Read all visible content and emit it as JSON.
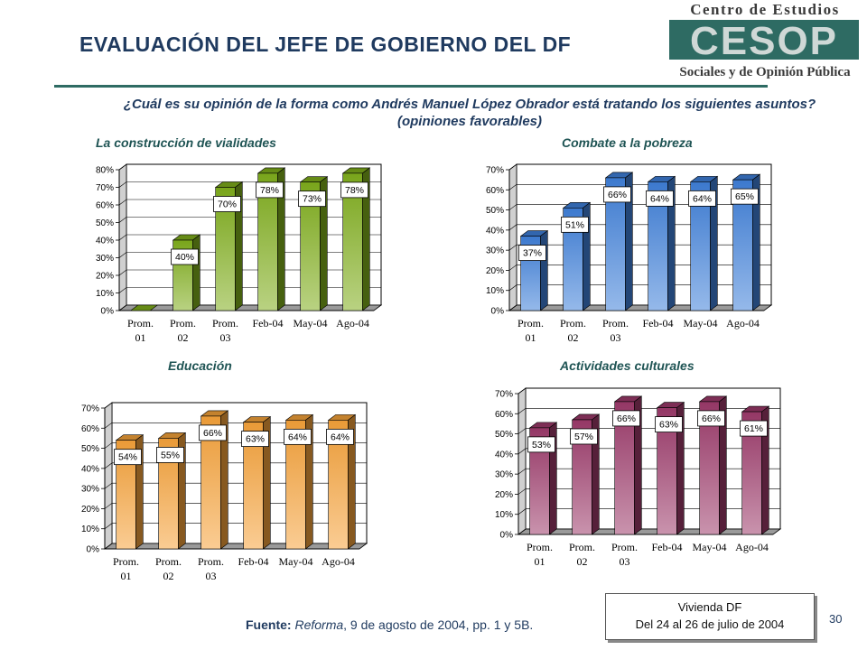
{
  "header": {
    "title": "EVALUACIÓN DEL JEFE DE GOBIERNO DEL DF",
    "logo_top": "Centro de Estudios",
    "logo_mark": "CESOP",
    "logo_bottom": "Sociales y de Opinión Pública"
  },
  "question": "¿Cuál es su opinión de la forma como Andrés Manuel López Obrador está tratando los siguientes asuntos? (opiniones favorables)",
  "chart_data": [
    {
      "type": "bar",
      "title": "La construcción de vialidades",
      "categories": [
        "Prom. 01",
        "Prom. 02",
        "Prom. 03",
        "Feb-04",
        "May-04",
        "Ago-04"
      ],
      "values": [
        0,
        40,
        70,
        78,
        73,
        78
      ],
      "data_labels": [
        "",
        "40%",
        "70%",
        "78%",
        "73%",
        "78%"
      ],
      "ylim": [
        0,
        80
      ],
      "yticks": [
        0,
        10,
        20,
        30,
        40,
        50,
        60,
        70,
        80
      ],
      "color": "#7fae1c",
      "grid": true
    },
    {
      "type": "bar",
      "title": "Combate a la pobreza",
      "categories": [
        "Prom. 01",
        "Prom. 02",
        "Prom. 03",
        "Feb-04",
        "May-04",
        "Ago-04"
      ],
      "values": [
        37,
        51,
        66,
        64,
        64,
        65
      ],
      "data_labels": [
        "37%",
        "51%",
        "66%",
        "64%",
        "64%",
        "65%"
      ],
      "ylim": [
        0,
        70
      ],
      "yticks": [
        0,
        10,
        20,
        30,
        40,
        50,
        60,
        70
      ],
      "color": "#3f7fd9",
      "grid": true
    },
    {
      "type": "bar",
      "title": "Educación",
      "categories": [
        "Prom. 01",
        "Prom. 02",
        "Prom. 03",
        "Feb-04",
        "May-04",
        "Ago-04"
      ],
      "values": [
        54,
        55,
        66,
        63,
        64,
        64
      ],
      "data_labels": [
        "54%",
        "55%",
        "66%",
        "63%",
        "64%",
        "64%"
      ],
      "ylim": [
        0,
        70
      ],
      "yticks": [
        0,
        10,
        20,
        30,
        40,
        50,
        60,
        70
      ],
      "color": "#f5a23a",
      "grid": true
    },
    {
      "type": "bar",
      "title": "Actividades culturales",
      "categories": [
        "Prom. 01",
        "Prom. 02",
        "Prom. 03",
        "Feb-04",
        "May-04",
        "Ago-04"
      ],
      "values": [
        53,
        57,
        66,
        63,
        66,
        61
      ],
      "data_labels": [
        "53%",
        "57%",
        "66%",
        "63%",
        "66%",
        "61%"
      ],
      "ylim": [
        0,
        70
      ],
      "yticks": [
        0,
        10,
        20,
        30,
        40,
        50,
        60,
        70
      ],
      "color": "#9c3a6a",
      "grid": true
    }
  ],
  "footer": {
    "source_label": "Fuente:",
    "source_pub": "Reforma",
    "source_rest": ", 9 de agosto de 2004, pp. 1 y 5B."
  },
  "infobox": {
    "line1": "Vivienda DF",
    "line2": "Del 24 al 26 de julio de 2004"
  },
  "page_number": "30"
}
